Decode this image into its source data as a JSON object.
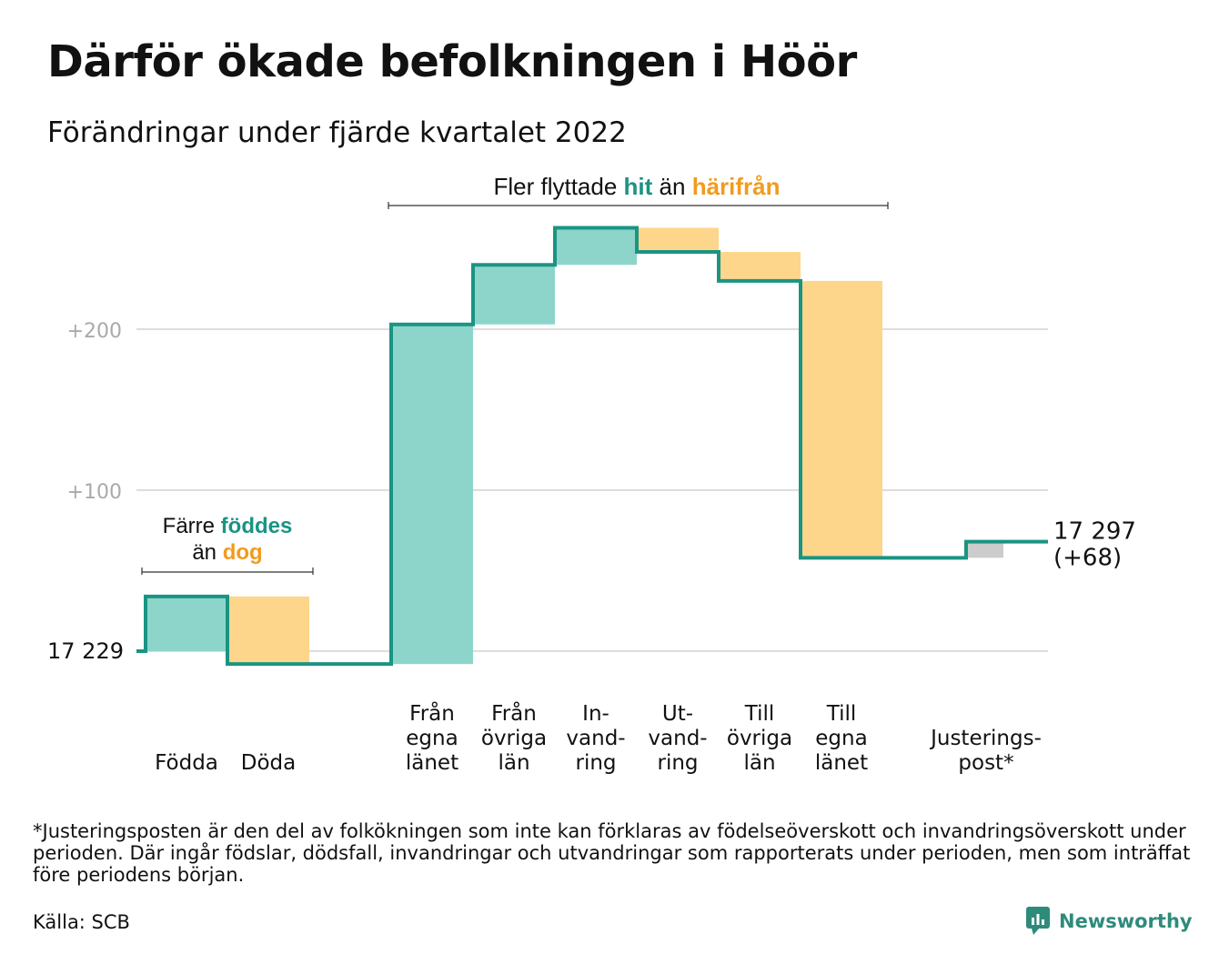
{
  "title": "Därför ökade befolkningen i Höör",
  "subtitle": "Förändringar under fjärde kvartalet 2022",
  "footnote": "*Justeringsposten är den del av folkökningen som inte kan förklaras av födelseöverskott och invandringsöverskott under perioden. Där ingår födslar, dödsfall, invandringar och utvandringar som rapporterats under perioden, men som inträffat före periodens början.",
  "source": "Källa: SCB",
  "brand": "Newsworthy",
  "colors": {
    "increase": "#8dd5cb",
    "decrease": "#fdd68b",
    "adjustment": "#cccccc",
    "line": "#1a9483",
    "accent_teal": "#1a9483",
    "accent_orange": "#f29b1d",
    "grid": "#dddddd",
    "axis_label": "#aaaaaa"
  },
  "chart_data": {
    "type": "waterfall",
    "start": {
      "value": 17229,
      "label": "17 229"
    },
    "end": {
      "value": 17297,
      "label": "17 297",
      "change_label": "(+68)"
    },
    "steps": [
      {
        "label": [
          "Födda"
        ],
        "change": 34,
        "kind": "increase"
      },
      {
        "label": [
          "Döda"
        ],
        "change": -42,
        "kind": "decrease"
      },
      {
        "label": [
          "Från",
          "egna",
          "länet"
        ],
        "change": 211,
        "kind": "increase"
      },
      {
        "label": [
          "Från",
          "övriga",
          "län"
        ],
        "change": 37,
        "kind": "increase"
      },
      {
        "label": [
          "In-",
          "vand-",
          "ring"
        ],
        "change": 23,
        "kind": "increase"
      },
      {
        "label": [
          "Ut-",
          "vand-",
          "ring"
        ],
        "change": -15,
        "kind": "decrease"
      },
      {
        "label": [
          "Till",
          "övriga",
          "län"
        ],
        "change": -18,
        "kind": "decrease"
      },
      {
        "label": [
          "Till",
          "egna",
          "länet"
        ],
        "change": -172,
        "kind": "decrease"
      },
      {
        "label": [
          "Justerings-",
          "post*"
        ],
        "change": 10,
        "kind": "adjustment"
      }
    ],
    "y_ticks": [
      {
        "offset": 100,
        "label": "+100"
      },
      {
        "offset": 200,
        "label": "+200"
      }
    ],
    "annotations": {
      "births": {
        "line1_pre": "Färre ",
        "line1_hl": "föddes",
        "line2_pre": "än ",
        "line2_hl": "dog"
      },
      "migration": {
        "pre": "Fler flyttade ",
        "hl1": "hit",
        "mid": " än ",
        "hl2": "härifrån"
      }
    }
  }
}
